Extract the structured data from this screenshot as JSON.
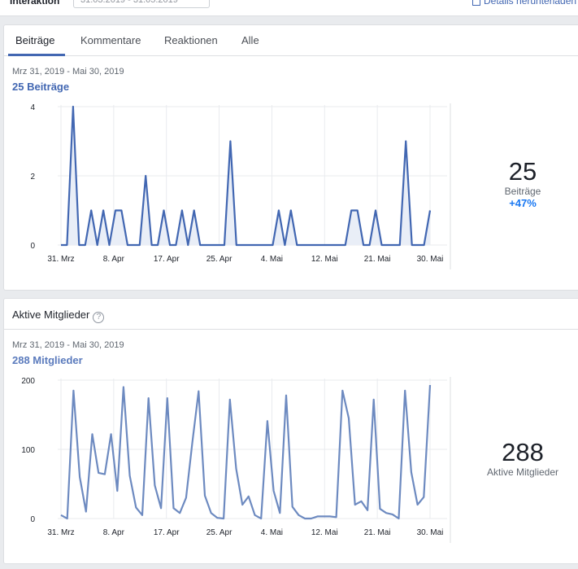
{
  "topbar": {
    "label": "Interaktion",
    "date_range": "31.03.2019 - 31.05.2019",
    "download": "Details herunterladen"
  },
  "posts_card": {
    "tabs": [
      {
        "label": "Beiträge"
      },
      {
        "label": "Kommentare"
      },
      {
        "label": "Reaktionen"
      },
      {
        "label": "Alle"
      }
    ],
    "range": "Mrz 31, 2019 - Mai 30, 2019",
    "count_label": "25  Beiträge",
    "summary": {
      "value": "25",
      "label": "Beiträge",
      "change": "+47%"
    }
  },
  "members_card": {
    "title": "Aktive Mitglieder",
    "range": "Mrz 31, 2019 - Mai 30, 2019",
    "count_label": "288  Mitglieder",
    "summary": {
      "value": "288",
      "label": "Aktive Mitglieder"
    }
  },
  "colors": {
    "line": "#4267b2",
    "line2": "#6d8ac0",
    "fill": "#e9eef7"
  },
  "chart_data": [
    {
      "type": "area",
      "x_tick_labels": [
        "31. Mrz",
        "8. Apr",
        "17. Apr",
        "25. Apr",
        "4. Mai",
        "12. Mai",
        "21. Mai",
        "30. Mai"
      ],
      "y_tick_labels": [
        "0",
        "2",
        "4"
      ],
      "ylim": [
        0,
        4
      ],
      "series": [
        {
          "values": [
            0,
            0,
            4,
            0,
            0,
            1,
            0,
            1,
            0,
            1,
            1,
            0,
            0,
            0,
            2,
            0,
            0,
            1,
            0,
            0,
            1,
            0,
            1,
            0,
            0,
            0,
            0,
            0,
            3,
            0,
            0,
            0,
            0,
            0,
            0,
            0,
            1,
            0,
            1,
            0,
            0,
            0,
            0,
            0,
            0,
            0,
            0,
            0,
            1,
            1,
            0,
            0,
            1,
            0,
            0,
            0,
            0,
            3,
            0,
            0,
            0,
            1
          ]
        }
      ]
    },
    {
      "type": "line",
      "x_tick_labels": [
        "31. Mrz",
        "8. Apr",
        "17. Apr",
        "25. Apr",
        "4. Mai",
        "12. Mai",
        "21. Mai",
        "30. Mai"
      ],
      "y_tick_labels": [
        "0",
        "100",
        "200"
      ],
      "ylim": [
        0,
        200
      ],
      "series": [
        {
          "values": [
            5,
            0,
            185,
            60,
            10,
            122,
            66,
            64,
            122,
            40,
            190,
            62,
            16,
            5,
            174,
            48,
            15,
            174,
            15,
            8,
            30,
            110,
            184,
            33,
            8,
            1,
            0,
            172,
            72,
            20,
            32,
            5,
            0,
            141,
            40,
            8,
            178,
            17,
            5,
            0,
            0,
            3,
            3,
            3,
            2,
            185,
            145,
            20,
            25,
            12,
            172,
            14,
            8,
            6,
            0,
            185,
            67,
            20,
            31,
            193
          ]
        }
      ]
    }
  ]
}
